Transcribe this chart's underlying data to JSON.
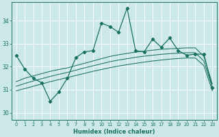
{
  "xlabel": "Humidex (Indice chaleur)",
  "xlim": [
    -0.5,
    23.5
  ],
  "ylim": [
    29.7,
    34.8
  ],
  "yticks": [
    30,
    31,
    32,
    33,
    34
  ],
  "xticks": [
    0,
    1,
    2,
    3,
    4,
    5,
    6,
    7,
    8,
    9,
    10,
    11,
    12,
    13,
    14,
    15,
    16,
    17,
    18,
    19,
    20,
    21,
    22,
    23
  ],
  "bg_color": "#cce8e8",
  "line_color": "#1a7060",
  "main_line": [
    32.5,
    31.9,
    31.5,
    31.3,
    30.5,
    30.9,
    31.5,
    32.4,
    32.65,
    32.7,
    33.9,
    33.75,
    33.5,
    34.55,
    32.7,
    32.65,
    33.2,
    32.85,
    33.25,
    32.7,
    32.5,
    32.55,
    32.55,
    31.1
  ],
  "upper_line": [
    31.35,
    31.5,
    31.6,
    31.7,
    31.8,
    31.88,
    31.95,
    32.05,
    32.15,
    32.25,
    32.35,
    32.45,
    32.52,
    32.58,
    32.64,
    32.68,
    32.72,
    32.76,
    32.78,
    32.8,
    32.82,
    32.82,
    32.45,
    31.25
  ],
  "mid_line": [
    31.15,
    31.27,
    31.38,
    31.48,
    31.58,
    31.67,
    31.75,
    31.85,
    31.95,
    32.04,
    32.13,
    32.22,
    32.29,
    32.35,
    32.41,
    32.46,
    32.5,
    32.54,
    32.57,
    32.59,
    32.61,
    32.61,
    32.25,
    31.1
  ],
  "lower_line": [
    30.95,
    31.05,
    31.15,
    31.25,
    31.35,
    31.44,
    31.53,
    31.62,
    31.71,
    31.8,
    31.88,
    31.96,
    32.03,
    32.09,
    32.15,
    32.2,
    32.25,
    32.29,
    32.33,
    32.36,
    32.38,
    32.38,
    32.05,
    30.95
  ]
}
